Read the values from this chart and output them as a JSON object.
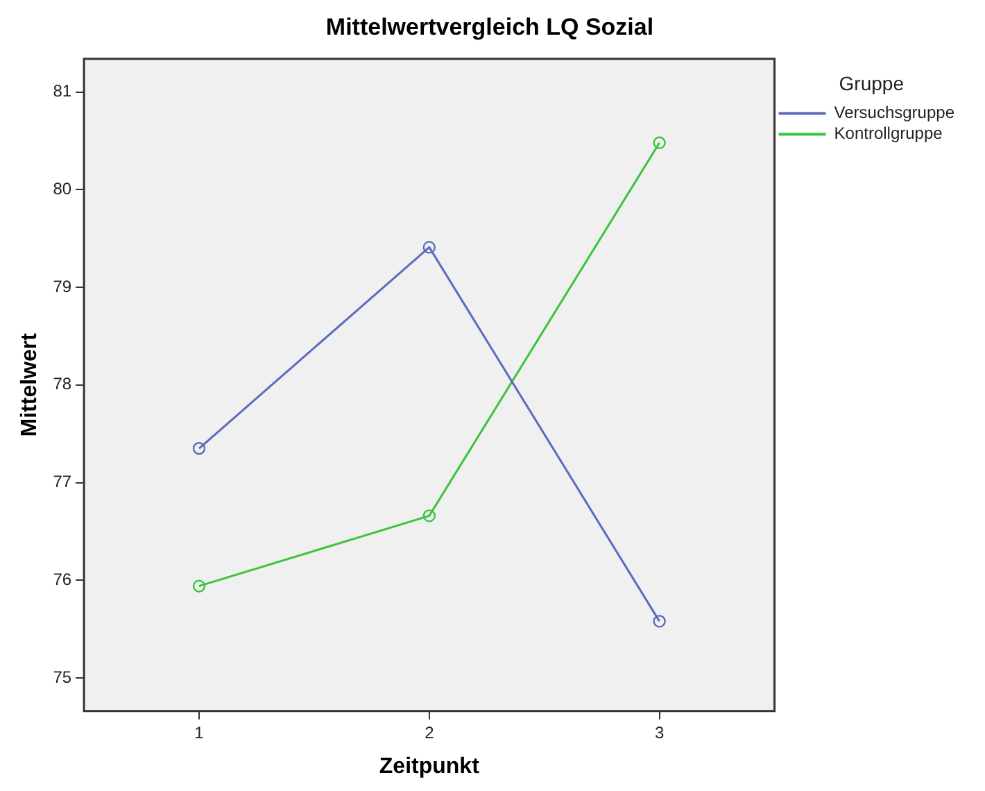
{
  "chart_data": {
    "type": "line",
    "title": "Mittelwertvergleich LQ Sozial",
    "xlabel": "Zeitpunkt",
    "ylabel": "Mittelwert",
    "legend_title": "Gruppe",
    "categories": [
      "1",
      "2",
      "3"
    ],
    "series": [
      {
        "name": "Versuchsgruppe",
        "color": "#5b6bbf",
        "values": [
          77.35,
          79.41,
          75.58
        ]
      },
      {
        "name": "Kontrollgruppe",
        "color": "#3cc43c",
        "values": [
          75.94,
          76.66,
          80.48
        ]
      }
    ],
    "ylim": [
      74.66,
      81.34
    ],
    "yticks": [
      75,
      76,
      77,
      78,
      79,
      80,
      81
    ],
    "grid": false,
    "legend": "right",
    "marker": "circle",
    "line_style": "solid"
  }
}
